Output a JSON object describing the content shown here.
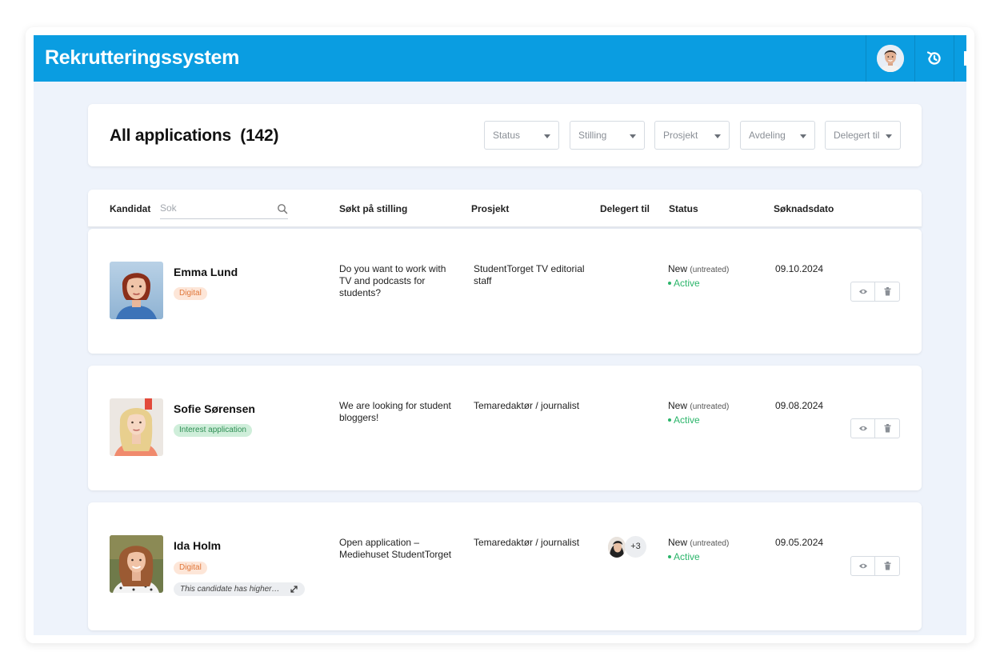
{
  "app": {
    "title": "Rekrutteringssystem"
  },
  "header": {
    "title": "All applications",
    "count": "(142)",
    "filters": [
      {
        "label": "Status"
      },
      {
        "label": "Stilling"
      },
      {
        "label": "Prosjekt"
      },
      {
        "label": "Avdeling"
      },
      {
        "label": "Delegert til"
      }
    ]
  },
  "table": {
    "columns": {
      "candidate": "Kandidat",
      "job": "Søkt på stilling",
      "project": "Prosjekt",
      "delegated": "Delegert til",
      "status": "Status",
      "date": "Søknadsdato"
    },
    "search": {
      "placeholder": "Sok",
      "value": ""
    },
    "rows": [
      {
        "name": "Emma Lund",
        "tag": "Digital",
        "job": "Do you want to work with TV and podcasts for students?",
        "project": "StudentTorget TV editorial staff",
        "status_main": "New",
        "status_sub": "(untreated)",
        "status_state": "Active",
        "date": "09.10.2024"
      },
      {
        "name": "Sofie Sørensen",
        "tag": "Interest application",
        "job": "We are looking for student bloggers!",
        "project": "Temaredaktør / journalist",
        "status_main": "New",
        "status_sub": "(untreated)",
        "status_state": "Active",
        "date": "09.08.2024"
      },
      {
        "name": "Ida Holm",
        "tag": "Digital",
        "note": "This candidate has higher…",
        "job": "Open application – Mediehuset StudentTorget",
        "project": "Temaredaktør / journalist",
        "delegated_more": "+3",
        "status_main": "New",
        "status_sub": "(untreated)",
        "status_state": "Active",
        "date": "09.05.2024"
      }
    ]
  },
  "colors": {
    "brand": "#0a9de1",
    "background": "#eef3fb",
    "active_green": "#2bb56a",
    "tag_digital_bg": "#fde6d8",
    "tag_digital_text": "#e0773a",
    "tag_interest_bg": "#cfeeda",
    "tag_interest_text": "#2f8f55"
  },
  "icons": [
    "user-avatar-icon",
    "history-icon",
    "search-icon",
    "chevron-down-icon",
    "eye-icon",
    "trash-icon",
    "expand-icon"
  ]
}
